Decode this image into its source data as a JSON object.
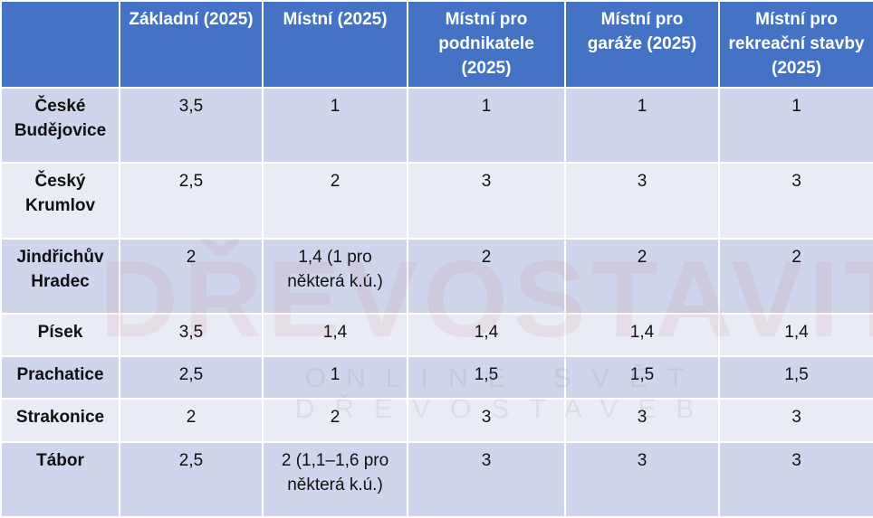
{
  "table": {
    "header": [
      "",
      "Základní (2025)",
      "Místní (2025)",
      "Místní pro podnikatele (2025)",
      "Místní pro garáže (2025)",
      "Místní pro rekreační stavby (2025)"
    ],
    "rows": [
      [
        "České Budějovice",
        "3,5",
        "1",
        "1",
        "1",
        "1"
      ],
      [
        "Český Krumlov",
        "2,5",
        "2",
        "3",
        "3",
        "3"
      ],
      [
        "Jindřichův Hradec",
        "2",
        "1,4 (1 pro některá k.ú.)",
        "2",
        "2",
        "2"
      ],
      [
        "Písek",
        "3,5",
        "1,4",
        "1,4",
        "1,4",
        "1,4"
      ],
      [
        "Prachatice",
        "2,5",
        "1",
        "1,5",
        "1,5",
        "1,5"
      ],
      [
        "Strakonice",
        "2",
        "2",
        "3",
        "3",
        "3"
      ],
      [
        "Tábor",
        "2,5",
        "2 (1,1–1,6 pro některá k.ú.)",
        "3",
        "3",
        "3"
      ]
    ]
  },
  "watermark": {
    "title": "DŘEVOSTAVITEL",
    "subtitle": "ONLINE SVĚT DŘEVOSTAVEB"
  }
}
